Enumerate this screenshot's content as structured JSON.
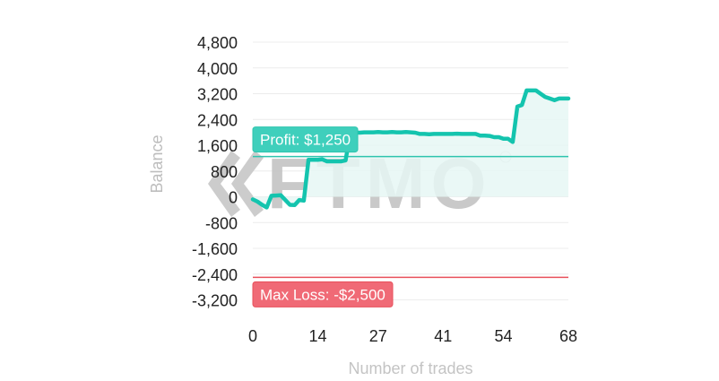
{
  "chart_data": {
    "type": "line",
    "xlabel": "Number of trades",
    "ylabel": "Balance",
    "x_ticks": [
      0,
      14,
      27,
      41,
      54,
      68
    ],
    "x_tick_labels": [
      "0",
      "14",
      "27",
      "41",
      "54",
      "68"
    ],
    "y_ticks": [
      4800,
      4000,
      3200,
      2400,
      1600,
      800,
      0,
      -800,
      -1600,
      -2400,
      -3200
    ],
    "y_tick_labels": [
      "4,800",
      "4,000",
      "3,200",
      "2,400",
      "1,600",
      "800",
      "0",
      "-800",
      "-1,600",
      "-2,400",
      "-3,200"
    ],
    "xlim": [
      0,
      68
    ],
    "ylim": [
      -3600,
      5000
    ],
    "grid": true,
    "series": [
      {
        "name": "Balance",
        "color": "#14c4ae",
        "fill": "#e6f7f4",
        "x": [
          0,
          1,
          2,
          3,
          4,
          5,
          6,
          7,
          8,
          9,
          10,
          11,
          12,
          13,
          14,
          15,
          16,
          17,
          18,
          19,
          20,
          21,
          22,
          23,
          24,
          25,
          26,
          27,
          28,
          29,
          30,
          31,
          32,
          33,
          34,
          35,
          36,
          37,
          38,
          39,
          40,
          41,
          42,
          43,
          44,
          45,
          46,
          47,
          48,
          49,
          50,
          51,
          52,
          53,
          54,
          55,
          56,
          57,
          58,
          59,
          60,
          61,
          62,
          63,
          64,
          65,
          66,
          67,
          68
        ],
        "values": [
          -80,
          -150,
          -250,
          -330,
          30,
          40,
          50,
          -100,
          -250,
          -260,
          -100,
          -120,
          1150,
          1150,
          1150,
          1160,
          1100,
          1100,
          1100,
          1100,
          1130,
          1990,
          2000,
          1990,
          2000,
          2000,
          2000,
          2010,
          2000,
          2000,
          2010,
          2000,
          2000,
          2010,
          2000,
          1990,
          1950,
          1950,
          1940,
          1950,
          1950,
          1950,
          1950,
          1950,
          1960,
          1950,
          1950,
          1950,
          1950,
          1900,
          1900,
          1890,
          1850,
          1850,
          1800,
          1800,
          1700,
          2800,
          2850,
          3300,
          3300,
          3300,
          3200,
          3100,
          3050,
          3000,
          3050,
          3050,
          3050
        ]
      }
    ],
    "reference_lines": [
      {
        "name": "profit-target",
        "value": 1250,
        "label": "Profit: $1,250",
        "color": "#2ec4ae",
        "label_bg": "#3fcfbc"
      },
      {
        "name": "max-loss",
        "value": -2500,
        "label": "Max Loss: -$2,500",
        "color": "#e8505b",
        "label_bg": "#f06a76"
      }
    ],
    "watermark": "FTMO"
  }
}
